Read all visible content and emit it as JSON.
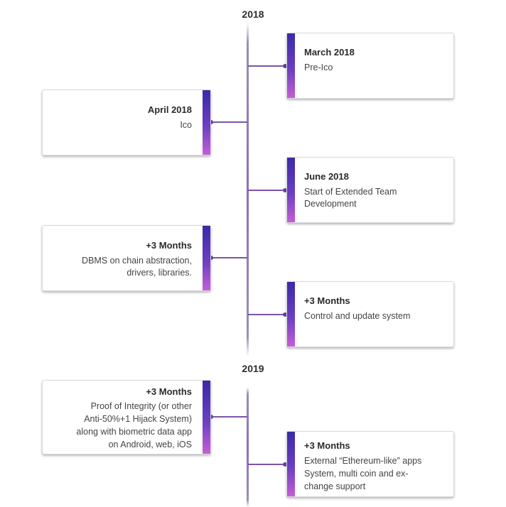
{
  "years": [
    {
      "label": "2018"
    },
    {
      "label": "2019"
    }
  ],
  "events": [
    {
      "side": "right",
      "title": "March 2018",
      "lines": [
        "Pre-Ico"
      ]
    },
    {
      "side": "left",
      "title": "April 2018",
      "lines": [
        "Ico"
      ]
    },
    {
      "side": "right",
      "title": "June 2018",
      "lines": [
        "Start of Extended Team",
        "Development"
      ]
    },
    {
      "side": "left",
      "title": "+3 Months",
      "lines": [
        "DBMS on chain abstraction,",
        "drivers, libraries."
      ]
    },
    {
      "side": "right",
      "title": "+3 Months",
      "lines": [
        "Control and update system"
      ]
    },
    {
      "side": "left",
      "title": "+3 Months",
      "lines": [
        "Proof of Integrity (or other",
        "Anti-50%+1 Hijack System)",
        "along with biometric data app",
        "on Android, web, iOS"
      ]
    },
    {
      "side": "right",
      "title": "+3 Months",
      "lines": [
        "External “Ethereum-like” apps",
        "System, multi coin and ex-",
        "change support"
      ]
    }
  ]
}
